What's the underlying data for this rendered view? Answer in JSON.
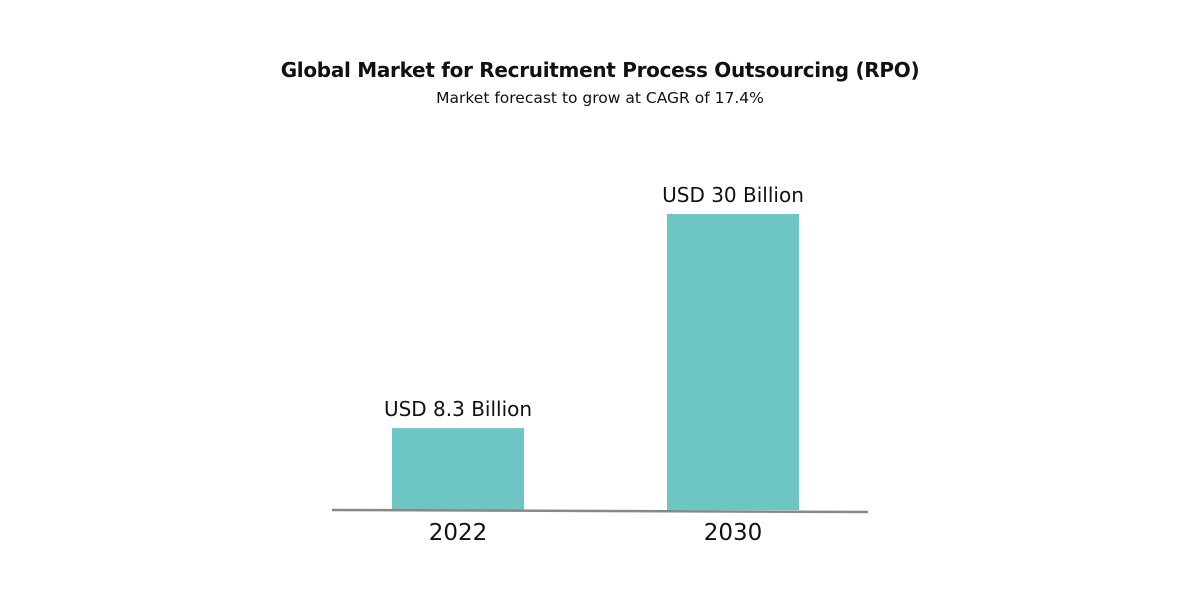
{
  "chart_data": {
    "type": "bar",
    "title": "Global Market for Recruitment Process Outsourcing (RPO)",
    "subtitle": "Market forecast to grow at CAGR of 17.4%",
    "categories": [
      "2022",
      "2030"
    ],
    "values": [
      8.3,
      30
    ],
    "data_labels": [
      "USD 8.3 Billion",
      "USD 30 Billion"
    ],
    "unit": "USD Billion",
    "xlabel": "",
    "ylabel": "",
    "ylim": [
      0,
      30
    ],
    "grid": false,
    "legend": "none",
    "colors": {
      "bar": "#6ec6c4",
      "axis": "#888888",
      "text": "#111111"
    }
  }
}
